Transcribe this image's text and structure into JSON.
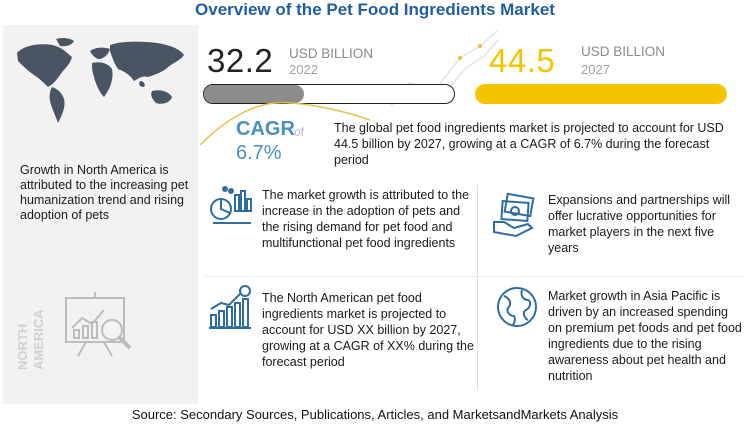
{
  "title": "Overview of the Pet Food Ingredients Market",
  "left_panel": {
    "region_text": "Growth in North America is attributed to the increasing pet humanization trend and rising adoption of pets",
    "vertical_label_line1": "NORTH",
    "vertical_label_line2": "AMERICA"
  },
  "stats": {
    "start": {
      "value": "32.2",
      "unit": "USD BILLION",
      "year": "2022",
      "fill_fraction": 0.4,
      "color": "#8c8c8c"
    },
    "end": {
      "value": "44.5",
      "unit": "USD BILLION",
      "year": "2027",
      "fill_fraction": 1.0,
      "color": "#f5c400"
    }
  },
  "cagr": {
    "label": "CAGR",
    "of": "of",
    "value": "6.7%",
    "text": "The global pet food ingredients market is projected to account for USD 44.5 billion by 2027, growing at a CAGR of 6.7% during the forecast period"
  },
  "blocks": {
    "adoption": "The market growth is attributed to the increase in the adoption of pets and the rising demand for pet food and multifunctional pet food ingredients",
    "expansions": "Expansions and partnerships will offer lucrative opportunities for market players in the next five years",
    "north_america": "The North American pet food ingredients market is projected to account for USD XX billion by 2027, growing at a CAGR of XX% during the forecast period",
    "asia_pacific": "Market growth in Asia Pacific is driven by an increased spending on premium pet foods and pet food ingredients due to the rising awareness about pet health and nutrition"
  },
  "source": "Source: Secondary Sources, Publications, Articles, and MarketsandMarkets Analysis",
  "colors": {
    "title": "#1f5f9e",
    "accent_blue": "#4a8fc2",
    "icon_blue": "#2f6d9e",
    "gold": "#f5c400",
    "gray_bar": "#8c8c8c"
  }
}
